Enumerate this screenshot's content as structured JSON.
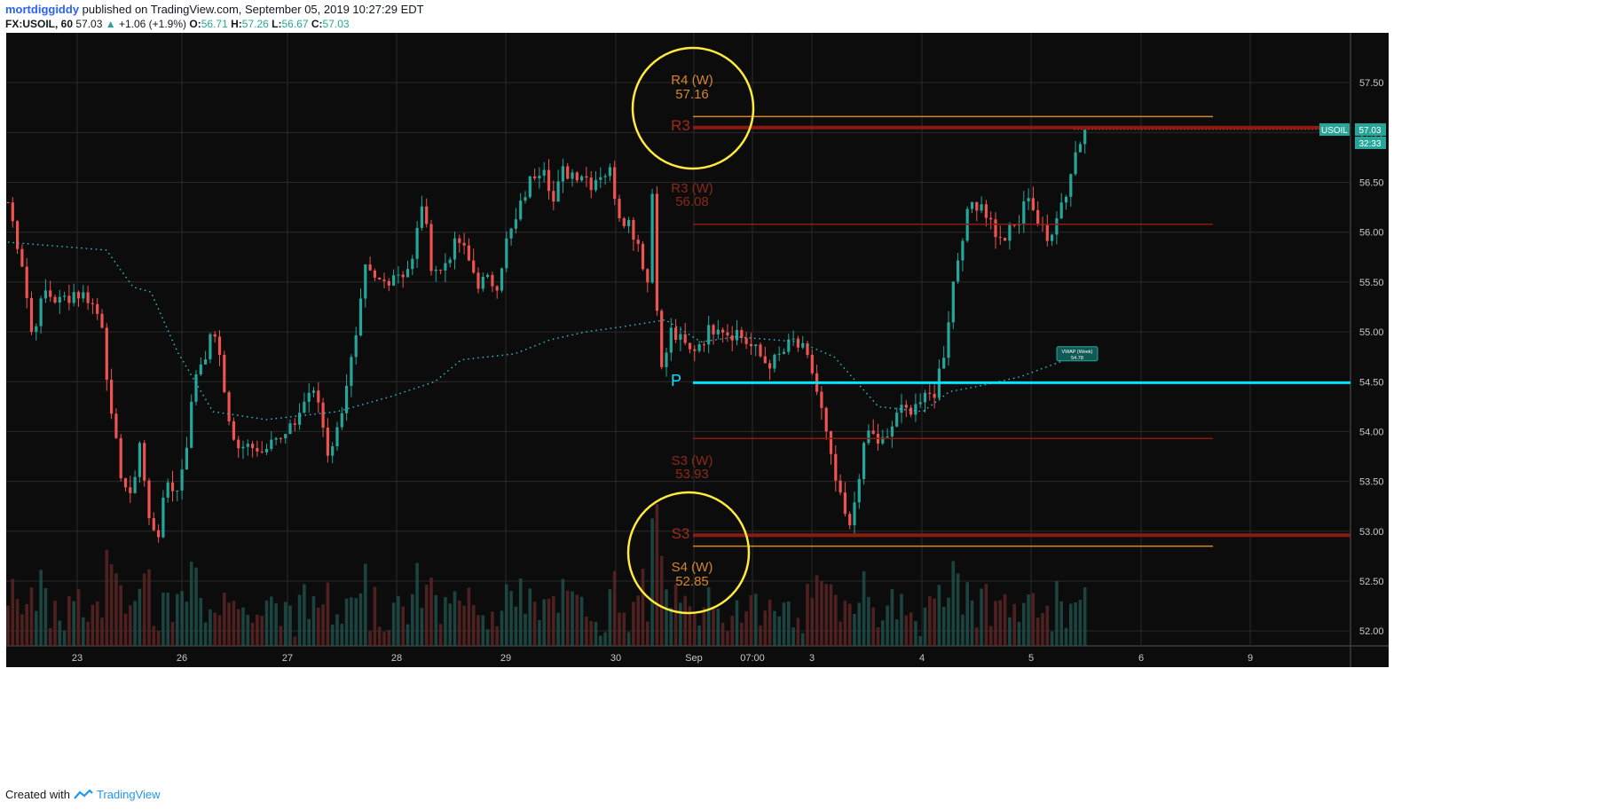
{
  "header": {
    "author": "mortdiggiddy",
    "published_text": "published on TradingView.com, September 05, 2019 10:27:29 EDT",
    "symbol": "FX:USOIL, 60",
    "last": "57.03",
    "change": "+1.06 (+1.9%)",
    "o_label": "O:",
    "o_value": "56.71",
    "h_label": "H:",
    "h_value": "57.26",
    "l_label": "L:",
    "l_value": "56.67",
    "c_label": "C:",
    "c_value": "57.03"
  },
  "footer": {
    "created_with": "Created with",
    "brand": "TradingView"
  },
  "colors": {
    "background": "#0c0c0c",
    "grid": "#2a2a2a",
    "up": "#26a69a",
    "down": "#ef5350",
    "vwap": "#26c6da",
    "pivot": "#00e5ff",
    "r3_s3": "#8b1a10",
    "r4_s4": "#d68430",
    "circle": "#ffeb3b",
    "axis_text": "#c8c8c8"
  },
  "chart_data": {
    "type": "candlestick",
    "symbol": "USOIL",
    "interval": "60",
    "ylim": [
      51.85,
      58.0
    ],
    "yticks": [
      "52.00",
      "52.50",
      "53.00",
      "53.50",
      "54.00",
      "54.50",
      "55.00",
      "55.50",
      "56.00",
      "56.50",
      "57.00",
      "57.50"
    ],
    "xticks": [
      "23",
      "26",
      "27",
      "28",
      "29",
      "30",
      "Sep",
      "07:00",
      "3",
      "4",
      "5",
      "6",
      "9"
    ],
    "price_label": {
      "symbol": "USOIL",
      "value": "57.03",
      "countdown": "32:33"
    },
    "levels": [
      {
        "name": "R4 (W)",
        "value": 57.16,
        "label_text": "R4 (W)",
        "value_text": "57.16"
      },
      {
        "name": "R3",
        "value": 57.05,
        "label_text": "R3"
      },
      {
        "name": "R3 (W)",
        "value": 56.08,
        "label_text": "R3 (W)",
        "value_text": "56.08"
      },
      {
        "name": "P",
        "value": 54.49,
        "label_text": "P"
      },
      {
        "name": "S3 (W)",
        "value": 53.93,
        "label_text": "S3 (W)",
        "value_text": "53.93"
      },
      {
        "name": "S3",
        "value": 52.96,
        "label_text": "S3"
      },
      {
        "name": "S4 (W)",
        "value": 52.85,
        "label_text": "S4 (W)",
        "value_text": "52.85"
      }
    ],
    "vwap_label": {
      "title": "VWAP (Week)",
      "value": "54.78"
    },
    "close_path": [
      [
        0,
        56.3
      ],
      [
        3,
        55.7
      ],
      [
        5,
        55.0
      ],
      [
        8,
        55.4
      ],
      [
        11,
        55.3
      ],
      [
        14,
        55.4
      ],
      [
        17,
        55.35
      ],
      [
        20,
        55.1
      ],
      [
        22,
        54.1
      ],
      [
        24,
        53.6
      ],
      [
        26,
        53.3
      ],
      [
        28,
        53.9
      ],
      [
        30,
        53.1
      ],
      [
        32,
        53.0
      ],
      [
        34,
        53.5
      ],
      [
        36,
        53.4
      ],
      [
        38,
        53.9
      ],
      [
        40,
        54.6
      ],
      [
        42,
        54.8
      ],
      [
        44,
        55.0
      ],
      [
        46,
        54.4
      ],
      [
        48,
        53.9
      ],
      [
        50,
        53.8
      ],
      [
        52,
        53.9
      ],
      [
        54,
        53.8
      ],
      [
        56,
        54.0
      ],
      [
        58,
        53.9
      ],
      [
        60,
        54.0
      ],
      [
        62,
        54.2
      ],
      [
        64,
        54.4
      ],
      [
        66,
        54.3
      ],
      [
        68,
        53.8
      ],
      [
        70,
        54.0
      ],
      [
        72,
        54.5
      ],
      [
        74,
        54.9
      ],
      [
        76,
        55.6
      ],
      [
        78,
        55.5
      ],
      [
        80,
        55.5
      ],
      [
        82,
        55.6
      ],
      [
        84,
        55.6
      ],
      [
        86,
        55.7
      ],
      [
        88,
        56.3
      ],
      [
        90,
        55.7
      ],
      [
        92,
        55.6
      ],
      [
        94,
        55.8
      ],
      [
        96,
        55.9
      ],
      [
        98,
        55.7
      ],
      [
        100,
        55.5
      ],
      [
        102,
        55.5
      ],
      [
        104,
        55.5
      ],
      [
        106,
        55.9
      ],
      [
        108,
        56.1
      ],
      [
        110,
        56.4
      ],
      [
        112,
        56.6
      ],
      [
        114,
        56.7
      ],
      [
        116,
        56.3
      ],
      [
        118,
        56.6
      ],
      [
        120,
        56.6
      ],
      [
        122,
        56.6
      ],
      [
        124,
        56.5
      ],
      [
        126,
        56.6
      ],
      [
        128,
        56.6
      ],
      [
        130,
        56.2
      ],
      [
        132,
        56.1
      ],
      [
        134,
        55.9
      ],
      [
        136,
        55.5
      ],
      [
        137,
        56.4
      ],
      [
        138,
        55.3
      ],
      [
        139,
        54.6
      ],
      [
        141,
        55.0
      ],
      [
        143,
        54.9
      ],
      [
        145,
        54.8
      ],
      [
        147,
        54.9
      ],
      [
        149,
        55.0
      ],
      [
        151,
        55.1
      ],
      [
        153,
        55.0
      ],
      [
        155,
        55.0
      ],
      [
        157,
        54.9
      ],
      [
        159,
        54.8
      ],
      [
        161,
        54.7
      ],
      [
        163,
        54.7
      ],
      [
        165,
        54.8
      ],
      [
        167,
        54.9
      ],
      [
        169,
        54.8
      ],
      [
        171,
        54.6
      ],
      [
        173,
        54.2
      ],
      [
        175,
        53.7
      ],
      [
        177,
        53.3
      ],
      [
        179,
        53.0
      ],
      [
        181,
        53.6
      ],
      [
        183,
        54.0
      ],
      [
        185,
        53.9
      ],
      [
        187,
        53.9
      ],
      [
        189,
        54.2
      ],
      [
        191,
        54.2
      ],
      [
        193,
        54.3
      ],
      [
        195,
        54.3
      ],
      [
        197,
        54.4
      ],
      [
        199,
        54.8
      ],
      [
        201,
        55.5
      ],
      [
        203,
        56.0
      ],
      [
        205,
        56.3
      ],
      [
        207,
        56.3
      ],
      [
        209,
        56.1
      ],
      [
        211,
        55.9
      ],
      [
        213,
        56.0
      ],
      [
        215,
        56.1
      ],
      [
        217,
        56.4
      ],
      [
        219,
        56.1
      ],
      [
        221,
        55.9
      ],
      [
        223,
        56.2
      ],
      [
        225,
        56.4
      ],
      [
        227,
        56.8
      ],
      [
        229,
        57.03
      ]
    ]
  }
}
